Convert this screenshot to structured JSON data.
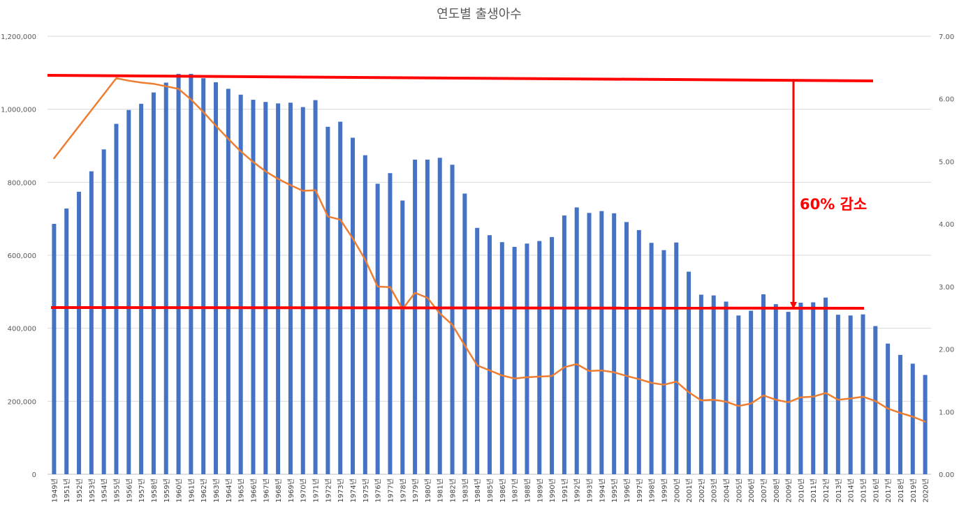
{
  "chart_data": {
    "type": "bar",
    "title": "연도별 출생아수",
    "categories": [
      "1949년",
      "1951년",
      "1952년",
      "1953년",
      "1954년",
      "1955년",
      "1956년",
      "1957년",
      "1958년",
      "1959년",
      "1960년",
      "1961년",
      "1962년",
      "1963년",
      "1964년",
      "1965년",
      "1966년",
      "1967년",
      "1968년",
      "1969년",
      "1970년",
      "1971년",
      "1972년",
      "1973년",
      "1974년",
      "1975년",
      "1976년",
      "1977년",
      "1978년",
      "1979년",
      "1980년",
      "1981년",
      "1982년",
      "1983년",
      "1984년",
      "1985년",
      "1986년",
      "1987년",
      "1988년",
      "1989년",
      "1990년",
      "1991년",
      "1992년",
      "1993년",
      "1994년",
      "1995년",
      "1996년",
      "1997년",
      "1998년",
      "1999년",
      "2000년",
      "2001년",
      "2002년",
      "2003년",
      "2004년",
      "2005년",
      "2006년",
      "2007년",
      "2008년",
      "2009년",
      "2010년",
      "2011년",
      "2012년",
      "2013년",
      "2014년",
      "2015년",
      "2016년",
      "2017년",
      "2018년",
      "2019년",
      "2020년"
    ],
    "series": [
      {
        "type": "bar",
        "axis": "left",
        "color": "#4472c4",
        "values": [
          686000,
          728000,
          774000,
          830000,
          890000,
          960000,
          998000,
          1015000,
          1046000,
          1073000,
          1097000,
          1097000,
          1085000,
          1074000,
          1056000,
          1040000,
          1026000,
          1020000,
          1016000,
          1018000,
          1006000,
          1025000,
          952000,
          966000,
          922000,
          874000,
          796000,
          825000,
          750000,
          862000,
          862000,
          867000,
          848000,
          769000,
          675000,
          655000,
          636000,
          623000,
          632000,
          639000,
          650000,
          709000,
          731000,
          716000,
          721000,
          715000,
          691000,
          669000,
          634000,
          614000,
          635000,
          555000,
          492000,
          490000,
          473000,
          435000,
          448000,
          493000,
          466000,
          445000,
          470000,
          471000,
          484000,
          437000,
          435000,
          438000,
          406000,
          358000,
          327000,
          303000,
          272000
        ]
      },
      {
        "type": "line",
        "axis": "right",
        "color": "#ed7d31",
        "values": [
          5.05,
          null,
          null,
          null,
          null,
          6.33,
          6.29,
          6.26,
          6.24,
          6.2,
          6.16,
          5.99,
          5.79,
          5.57,
          5.36,
          5.16,
          4.99,
          4.84,
          4.72,
          4.62,
          4.53,
          4.54,
          4.12,
          4.07,
          3.77,
          3.43,
          3.0,
          2.99,
          2.64,
          2.9,
          2.82,
          2.57,
          2.39,
          2.06,
          1.74,
          1.66,
          1.58,
          1.53,
          1.55,
          1.56,
          1.57,
          1.71,
          1.76,
          1.65,
          1.66,
          1.63,
          1.57,
          1.52,
          1.46,
          1.43,
          1.48,
          1.31,
          1.18,
          1.19,
          1.16,
          1.09,
          1.13,
          1.26,
          1.19,
          1.15,
          1.23,
          1.24,
          1.3,
          1.19,
          1.21,
          1.24,
          1.17,
          1.05,
          0.98,
          0.92,
          0.84
        ]
      }
    ],
    "yaxis_left": {
      "min": 0,
      "max": 1200000,
      "ticks": [
        "0",
        "200,000",
        "400,000",
        "600,000",
        "800,000",
        "1,000,000",
        "1,200,000"
      ]
    },
    "yaxis_right": {
      "min": 0,
      "max": 7,
      "ticks": [
        "0.00",
        "1.00",
        "2.00",
        "3.00",
        "4.00",
        "5.00",
        "6.00",
        "7.00"
      ]
    },
    "grid": true,
    "annotations": {
      "upper_line_color": "#ff0000",
      "lower_line_color": "#ff0000",
      "arrow_color": "#ff0000",
      "text": "60% 감소"
    }
  }
}
